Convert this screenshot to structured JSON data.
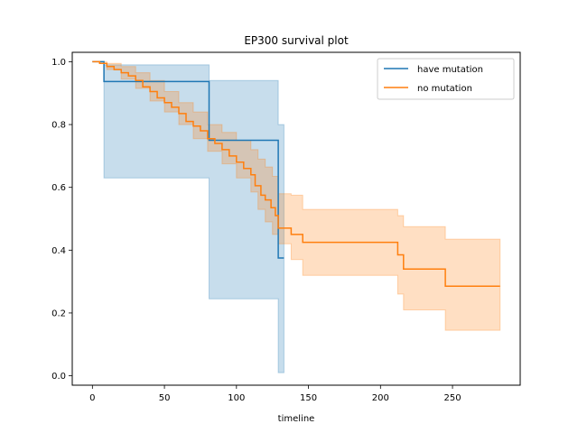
{
  "chart_data": {
    "type": "line",
    "title": "EP300 survival plot",
    "xlabel": "timeline",
    "ylabel": "",
    "xlim": [
      -14,
      297
    ],
    "ylim": [
      -0.03,
      1.03
    ],
    "x_ticks": [
      0,
      50,
      100,
      150,
      200,
      250
    ],
    "y_ticks": [
      0.0,
      0.2,
      0.4,
      0.6,
      0.8,
      1.0
    ],
    "x_tick_labels": [
      "0",
      "50",
      "100",
      "150",
      "200",
      "250"
    ],
    "y_tick_labels": [
      "0.0",
      "0.2",
      "0.4",
      "0.6",
      "0.8",
      "1.0"
    ],
    "grid": false,
    "legend_position": "top-right",
    "series": [
      {
        "name": "have mutation",
        "color": "#1f77b4",
        "band_color": "#1f77b4",
        "steps": [
          [
            0,
            1.0
          ],
          [
            8,
            1.0
          ],
          [
            8,
            0.937
          ],
          [
            81,
            0.937
          ],
          [
            81,
            0.75
          ],
          [
            129,
            0.75
          ],
          [
            129,
            0.375
          ],
          [
            133,
            0.375
          ]
        ],
        "ci_lower": [
          [
            0,
            1.0
          ],
          [
            8,
            1.0
          ],
          [
            8,
            0.63
          ],
          [
            81,
            0.63
          ],
          [
            81,
            0.245
          ],
          [
            129,
            0.245
          ],
          [
            129,
            0.01
          ],
          [
            133,
            0.01
          ]
        ],
        "ci_upper": [
          [
            0,
            1.0
          ],
          [
            8,
            1.0
          ],
          [
            8,
            0.99
          ],
          [
            81,
            0.99
          ],
          [
            81,
            0.94
          ],
          [
            129,
            0.94
          ],
          [
            129,
            0.8
          ],
          [
            133,
            0.8
          ]
        ]
      },
      {
        "name": "no mutation",
        "color": "#ff7f0e",
        "band_color": "#ff7f0e",
        "steps": [
          [
            0,
            1.0
          ],
          [
            5,
            0.995
          ],
          [
            10,
            0.985
          ],
          [
            15,
            0.975
          ],
          [
            20,
            0.965
          ],
          [
            25,
            0.955
          ],
          [
            30,
            0.94
          ],
          [
            35,
            0.92
          ],
          [
            40,
            0.905
          ],
          [
            45,
            0.885
          ],
          [
            50,
            0.87
          ],
          [
            55,
            0.855
          ],
          [
            60,
            0.835
          ],
          [
            65,
            0.81
          ],
          [
            70,
            0.795
          ],
          [
            75,
            0.78
          ],
          [
            80,
            0.755
          ],
          [
            85,
            0.74
          ],
          [
            90,
            0.72
          ],
          [
            95,
            0.7
          ],
          [
            100,
            0.68
          ],
          [
            105,
            0.66
          ],
          [
            110,
            0.64
          ],
          [
            113,
            0.605
          ],
          [
            117,
            0.575
          ],
          [
            120,
            0.56
          ],
          [
            124,
            0.535
          ],
          [
            127,
            0.51
          ],
          [
            129,
            0.47
          ],
          [
            138,
            0.47
          ],
          [
            138,
            0.45
          ],
          [
            146,
            0.45
          ],
          [
            146,
            0.425
          ],
          [
            212,
            0.425
          ],
          [
            212,
            0.385
          ],
          [
            216,
            0.385
          ],
          [
            216,
            0.34
          ],
          [
            245,
            0.34
          ],
          [
            245,
            0.285
          ],
          [
            283,
            0.285
          ]
        ],
        "ci_lower": [
          [
            0,
            1.0
          ],
          [
            10,
            0.975
          ],
          [
            20,
            0.945
          ],
          [
            30,
            0.915
          ],
          [
            40,
            0.875
          ],
          [
            50,
            0.84
          ],
          [
            60,
            0.8
          ],
          [
            70,
            0.755
          ],
          [
            80,
            0.715
          ],
          [
            90,
            0.675
          ],
          [
            100,
            0.63
          ],
          [
            110,
            0.585
          ],
          [
            115,
            0.53
          ],
          [
            120,
            0.49
          ],
          [
            125,
            0.45
          ],
          [
            129,
            0.42
          ],
          [
            138,
            0.37
          ],
          [
            146,
            0.32
          ],
          [
            212,
            0.32
          ],
          [
            212,
            0.26
          ],
          [
            216,
            0.26
          ],
          [
            216,
            0.21
          ],
          [
            245,
            0.21
          ],
          [
            245,
            0.145
          ],
          [
            283,
            0.145
          ]
        ],
        "ci_upper": [
          [
            0,
            1.0
          ],
          [
            10,
            0.995
          ],
          [
            20,
            0.985
          ],
          [
            30,
            0.965
          ],
          [
            40,
            0.94
          ],
          [
            50,
            0.905
          ],
          [
            60,
            0.87
          ],
          [
            70,
            0.84
          ],
          [
            80,
            0.8
          ],
          [
            90,
            0.775
          ],
          [
            100,
            0.75
          ],
          [
            110,
            0.72
          ],
          [
            115,
            0.69
          ],
          [
            120,
            0.665
          ],
          [
            125,
            0.635
          ],
          [
            129,
            0.58
          ],
          [
            138,
            0.575
          ],
          [
            146,
            0.53
          ],
          [
            212,
            0.53
          ],
          [
            212,
            0.51
          ],
          [
            216,
            0.51
          ],
          [
            216,
            0.475
          ],
          [
            245,
            0.475
          ],
          [
            245,
            0.435
          ],
          [
            283,
            0.435
          ]
        ]
      }
    ]
  }
}
